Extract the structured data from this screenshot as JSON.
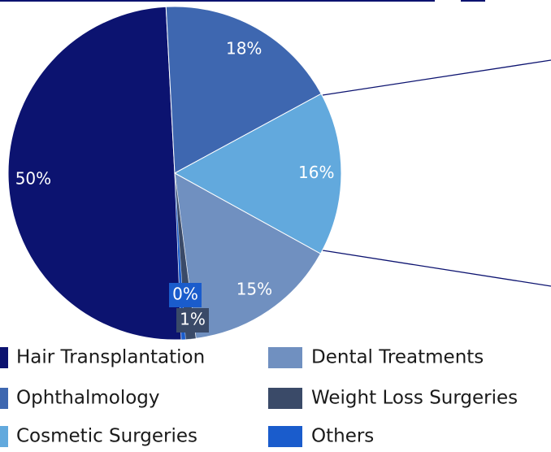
{
  "chart_data": {
    "type": "pie",
    "categories": [
      "Hair Transplantation",
      "Ophthalmology",
      "Cosmetic Surgeries",
      "Dental Treatments",
      "Weight Loss Surgeries",
      "Others"
    ],
    "values": [
      50,
      18,
      16,
      15,
      1,
      0.4
    ],
    "value_labels": [
      "50%",
      "18%",
      "16%",
      "15%",
      "1%",
      "0%"
    ],
    "colors": [
      "#0c1370",
      "#3e67b0",
      "#62a9dd",
      "#7090c0",
      "#3a4a68",
      "#1a5ccc"
    ],
    "legend": "bottom"
  }
}
